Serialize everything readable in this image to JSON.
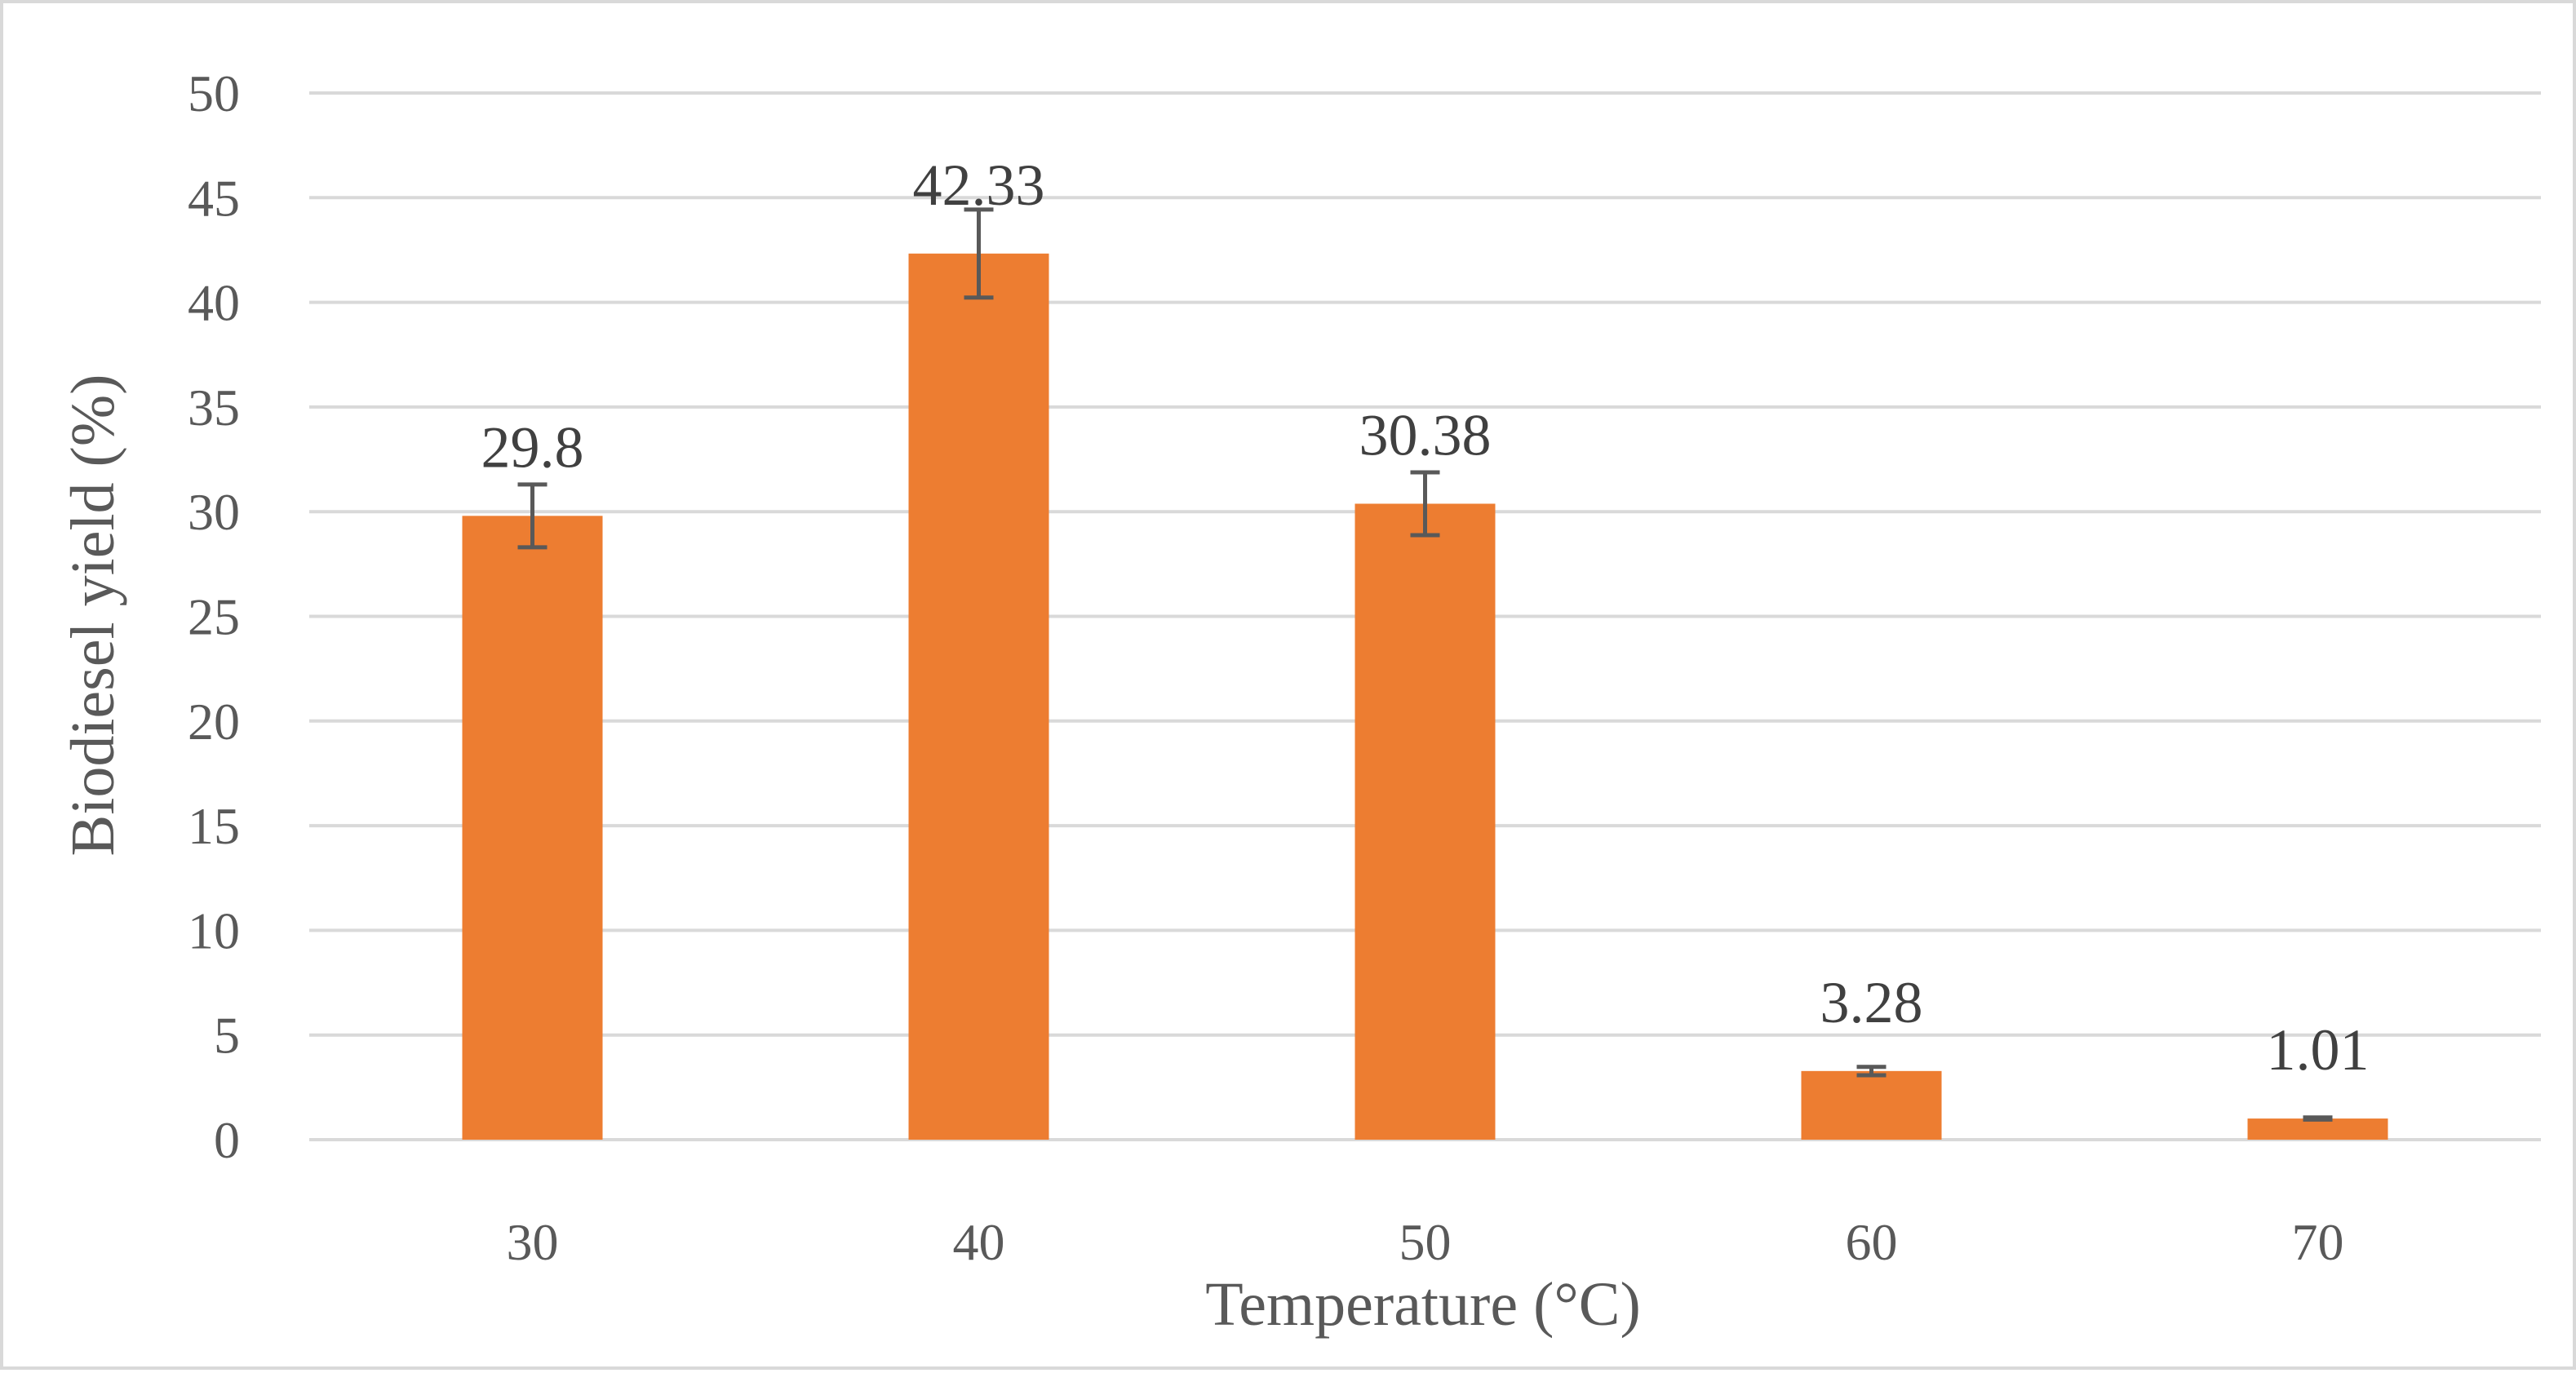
{
  "chart_data": {
    "type": "bar",
    "title": "",
    "xlabel": "Temperature (°C)",
    "ylabel": "Biodiesel yield (%)",
    "categories": [
      "30",
      "40",
      "50",
      "60",
      "70"
    ],
    "values": [
      29.8,
      42.33,
      30.38,
      3.28,
      1.01
    ],
    "value_labels": [
      "29.8",
      "42.33",
      "30.38",
      "3.28",
      "1.01"
    ],
    "error": [
      1.5,
      2.1,
      1.5,
      0.2,
      0.05
    ],
    "ylim": [
      0,
      50
    ],
    "yticks": [
      0,
      5,
      10,
      15,
      20,
      25,
      30,
      35,
      40,
      45,
      50
    ],
    "grid": true,
    "legend": "none",
    "colors": {
      "bar": "#ed7d31",
      "error_bar": "#595959",
      "grid": "#d9d9d9"
    }
  }
}
